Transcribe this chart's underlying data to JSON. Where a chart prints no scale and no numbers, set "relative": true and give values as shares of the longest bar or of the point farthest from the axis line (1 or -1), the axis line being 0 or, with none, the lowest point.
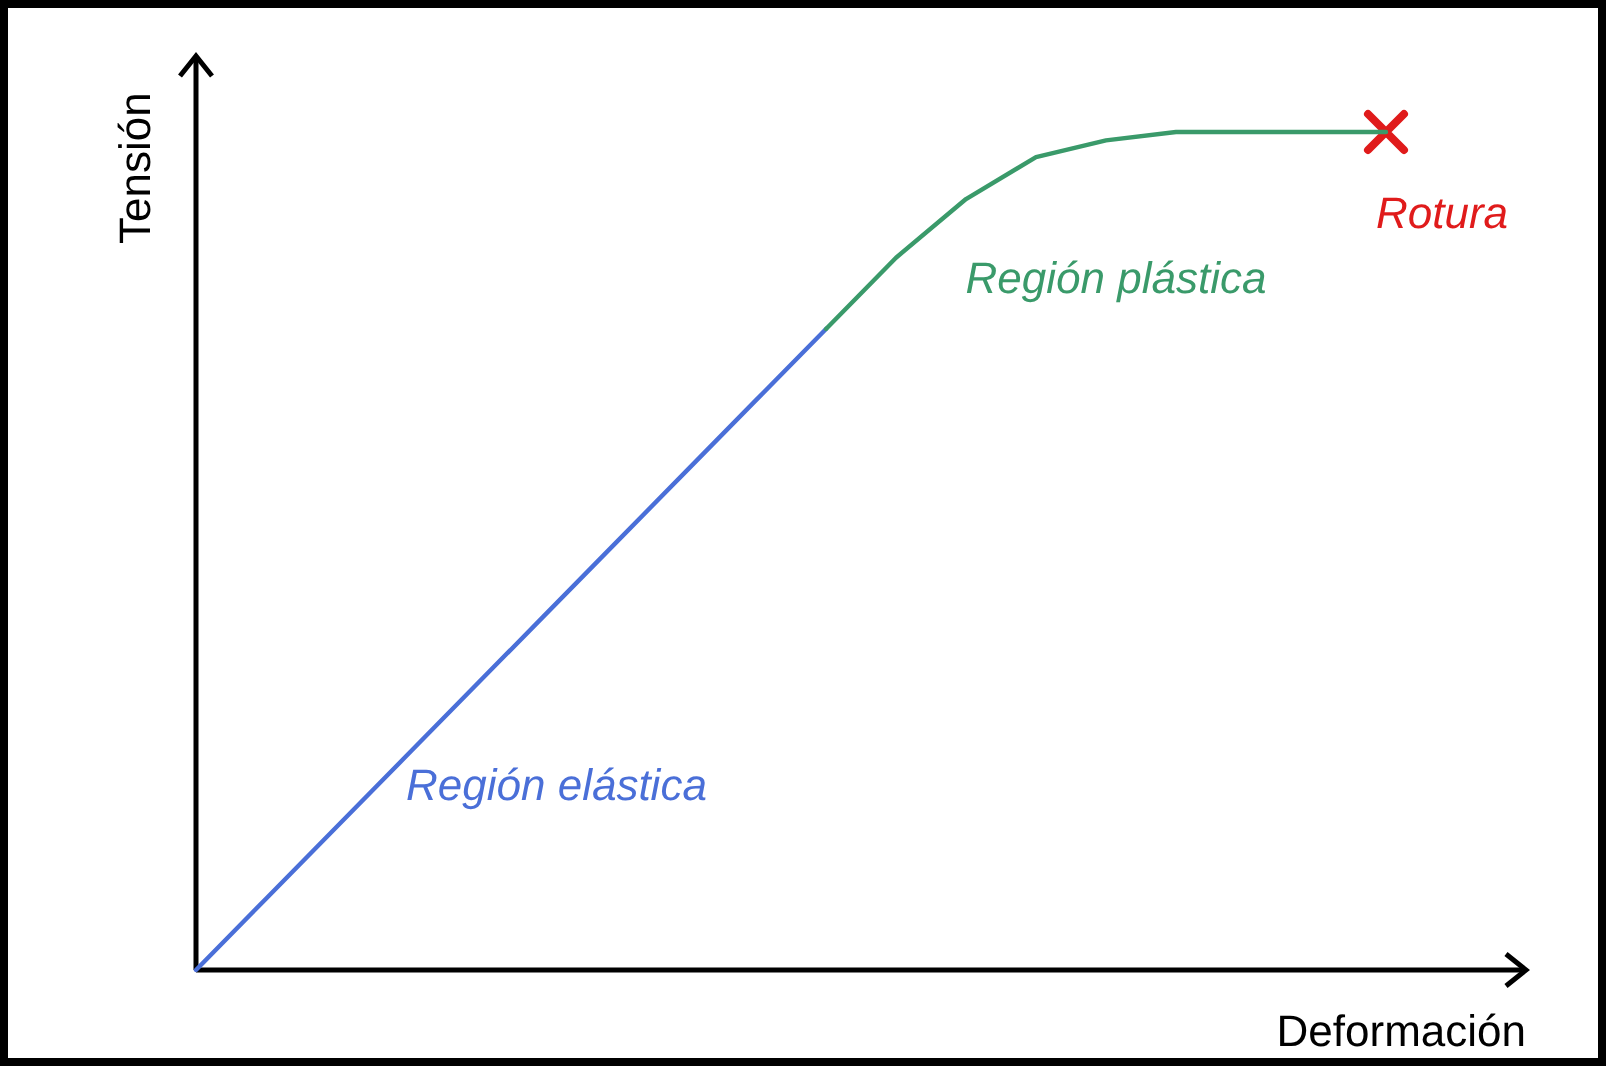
{
  "chart_data": {
    "type": "line",
    "relative": true,
    "xlabel": "Deformación",
    "ylabel": "Tensión",
    "legend": false,
    "marker": "none",
    "categories": [
      null,
      null,
      null,
      null,
      null,
      null,
      null,
      null,
      null,
      null,
      null,
      null,
      null,
      null,
      null,
      null,
      null,
      null,
      null,
      null
    ],
    "annotations": [
      "Rotura"
    ],
    "series": [
      {
        "name": "Región elástica",
        "color": "#4a6fd8",
        "values": [
          0,
          0.085,
          0.17,
          0.255,
          0.34,
          0.425,
          0.51,
          0.595,
          0.68,
          0.765,
          null,
          null,
          null,
          null,
          null,
          null,
          null,
          null,
          null,
          null
        ]
      },
      {
        "name": "Región plástica",
        "color": "#3a9a6a",
        "values": [
          null,
          null,
          null,
          null,
          null,
          null,
          null,
          null,
          null,
          0.765,
          0.85,
          0.92,
          0.97,
          0.99,
          1,
          1,
          1,
          1,
          null,
          null
        ]
      }
    ]
  }
}
